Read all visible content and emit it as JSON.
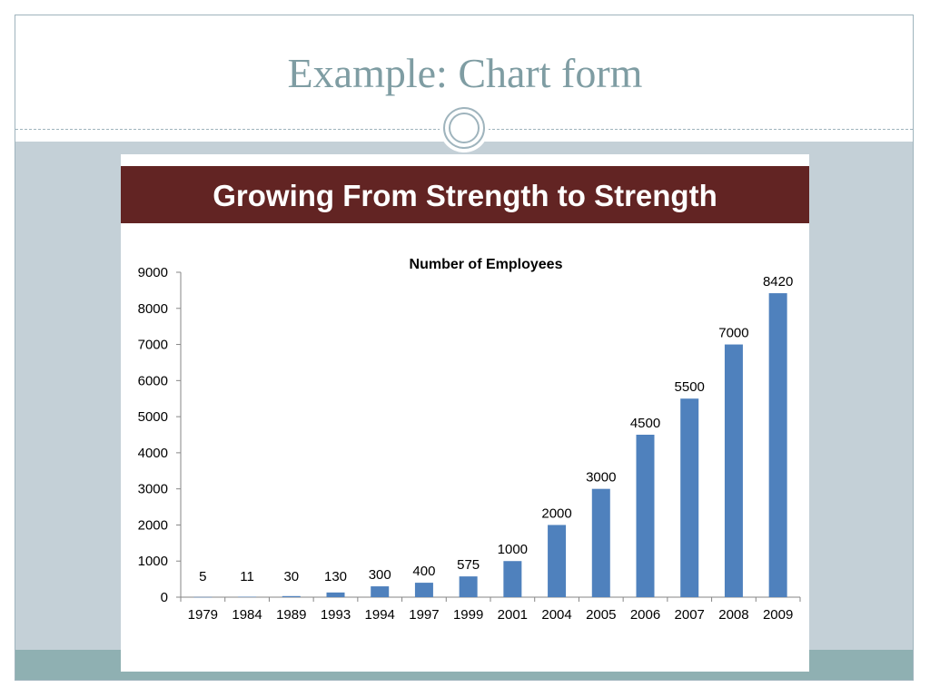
{
  "slide": {
    "title": "Example:  Chart form"
  },
  "banner": {
    "text": "Growing From Strength to Strength"
  },
  "colors": {
    "bar": "#4f81bd",
    "banner": "#622423",
    "title": "#7f9da3"
  },
  "chart_data": {
    "type": "bar",
    "title": "Number of Employees",
    "xlabel": "",
    "ylabel": "",
    "categories": [
      "1979",
      "1984",
      "1989",
      "1993",
      "1994",
      "1997",
      "1999",
      "2001",
      "2004",
      "2005",
      "2006",
      "2007",
      "2008",
      "2009"
    ],
    "values": [
      5,
      11,
      30,
      130,
      300,
      400,
      575,
      1000,
      2000,
      3000,
      4500,
      5500,
      7000,
      8420
    ],
    "ylim": [
      0,
      9000
    ],
    "yticks": [
      0,
      1000,
      2000,
      3000,
      4000,
      5000,
      6000,
      7000,
      8000,
      9000
    ],
    "grid": false,
    "legend": "none",
    "data_labels": true
  }
}
